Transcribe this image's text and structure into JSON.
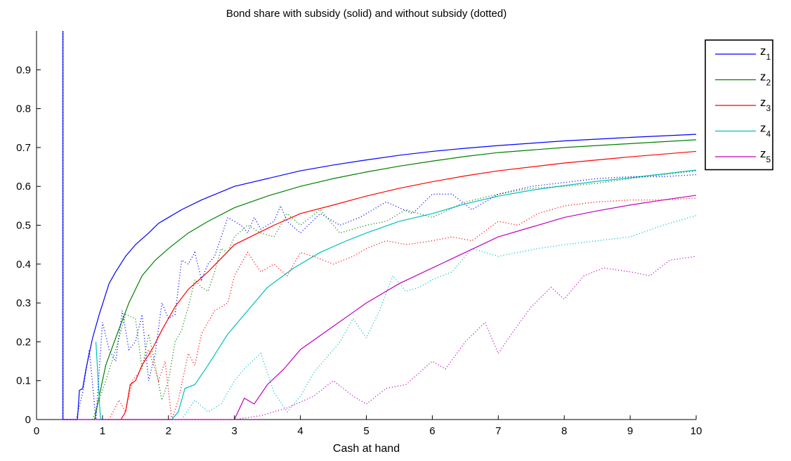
{
  "chart_data": {
    "type": "line",
    "title": "Bond share with subsidy (solid) and without subsidy (dotted)",
    "xlabel": "Cash at hand",
    "ylabel": "",
    "xlim": [
      0,
      10
    ],
    "ylim": [
      0,
      1
    ],
    "xticks": [
      "0",
      "1",
      "2",
      "3",
      "4",
      "5",
      "6",
      "7",
      "8",
      "9",
      "10"
    ],
    "yticks": [
      "0",
      "0.1",
      "0.2",
      "0.3",
      "0.4",
      "0.5",
      "0.6",
      "0.7",
      "0.8",
      "0.9"
    ],
    "grid": false,
    "legend_position": "top-right",
    "series": [
      {
        "name": "z",
        "subscript": "1",
        "color": "#0000ff",
        "style": "solid",
        "points": [
          [
            0.4,
            0
          ],
          [
            0.4,
            1.0
          ],
          [
            0.4,
            0
          ],
          [
            0.62,
            0
          ],
          [
            0.65,
            0.075
          ],
          [
            0.7,
            0.08
          ],
          [
            0.75,
            0.13
          ],
          [
            0.85,
            0.21
          ],
          [
            0.95,
            0.27
          ],
          [
            1.1,
            0.35
          ],
          [
            1.2,
            0.38
          ],
          [
            1.35,
            0.42
          ],
          [
            1.5,
            0.45
          ],
          [
            1.7,
            0.48
          ],
          [
            1.85,
            0.505
          ],
          [
            2.0,
            0.52
          ],
          [
            2.2,
            0.54
          ],
          [
            2.5,
            0.565
          ],
          [
            3.0,
            0.6
          ],
          [
            3.5,
            0.62
          ],
          [
            4.0,
            0.64
          ],
          [
            4.5,
            0.655
          ],
          [
            5.0,
            0.668
          ],
          [
            5.5,
            0.68
          ],
          [
            6.0,
            0.69
          ],
          [
            6.5,
            0.698
          ],
          [
            7.0,
            0.705
          ],
          [
            8.0,
            0.717
          ],
          [
            9.0,
            0.726
          ],
          [
            10.0,
            0.734
          ]
        ]
      },
      {
        "name": "z",
        "subscript": "2",
        "color": "#008000",
        "style": "solid",
        "points": [
          [
            0.88,
            0
          ],
          [
            0.95,
            0.06
          ],
          [
            1.05,
            0.14
          ],
          [
            1.2,
            0.21
          ],
          [
            1.4,
            0.3
          ],
          [
            1.6,
            0.37
          ],
          [
            1.8,
            0.41
          ],
          [
            2.0,
            0.44
          ],
          [
            2.3,
            0.48
          ],
          [
            2.6,
            0.51
          ],
          [
            3.0,
            0.545
          ],
          [
            3.5,
            0.575
          ],
          [
            4.0,
            0.6
          ],
          [
            4.5,
            0.62
          ],
          [
            5.0,
            0.637
          ],
          [
            5.5,
            0.652
          ],
          [
            6.0,
            0.665
          ],
          [
            6.5,
            0.677
          ],
          [
            7.0,
            0.687
          ],
          [
            8.0,
            0.7
          ],
          [
            9.0,
            0.71
          ],
          [
            10.0,
            0.72
          ]
        ]
      },
      {
        "name": "z",
        "subscript": "3",
        "color": "#ff0000",
        "style": "solid",
        "points": [
          [
            1.28,
            0
          ],
          [
            1.35,
            0.02
          ],
          [
            1.42,
            0.09
          ],
          [
            1.5,
            0.1
          ],
          [
            1.6,
            0.14
          ],
          [
            1.75,
            0.18
          ],
          [
            1.9,
            0.23
          ],
          [
            2.1,
            0.29
          ],
          [
            2.3,
            0.335
          ],
          [
            2.6,
            0.38
          ],
          [
            3.0,
            0.45
          ],
          [
            3.3,
            0.475
          ],
          [
            3.6,
            0.5
          ],
          [
            4.0,
            0.53
          ],
          [
            4.5,
            0.552
          ],
          [
            5.0,
            0.575
          ],
          [
            5.5,
            0.595
          ],
          [
            6.0,
            0.612
          ],
          [
            6.5,
            0.627
          ],
          [
            7.0,
            0.64
          ],
          [
            8.0,
            0.66
          ],
          [
            9.0,
            0.676
          ],
          [
            10.0,
            0.69
          ]
        ]
      },
      {
        "name": "z",
        "subscript": "4",
        "color": "#00bfbf",
        "style": "solid",
        "points": [
          [
            0.9,
            0.2
          ],
          [
            0.97,
            0
          ],
          [
            2.05,
            0
          ],
          [
            2.15,
            0.02
          ],
          [
            2.25,
            0.08
          ],
          [
            2.4,
            0.09
          ],
          [
            2.6,
            0.14
          ],
          [
            2.9,
            0.22
          ],
          [
            3.2,
            0.28
          ],
          [
            3.5,
            0.34
          ],
          [
            3.9,
            0.39
          ],
          [
            4.3,
            0.43
          ],
          [
            4.7,
            0.46
          ],
          [
            5.0,
            0.48
          ],
          [
            5.5,
            0.51
          ],
          [
            6.0,
            0.53
          ],
          [
            6.5,
            0.555
          ],
          [
            7.0,
            0.575
          ],
          [
            7.5,
            0.59
          ],
          [
            8.0,
            0.602
          ],
          [
            8.5,
            0.613
          ],
          [
            9.0,
            0.622
          ],
          [
            9.5,
            0.632
          ],
          [
            10.0,
            0.642
          ]
        ]
      },
      {
        "name": "z",
        "subscript": "5",
        "color": "#bf00bf",
        "style": "solid",
        "points": [
          [
            0.4,
            0
          ],
          [
            3.0,
            0
          ],
          [
            3.15,
            0.055
          ],
          [
            3.3,
            0.04
          ],
          [
            3.5,
            0.09
          ],
          [
            3.75,
            0.13
          ],
          [
            4.0,
            0.18
          ],
          [
            4.5,
            0.24
          ],
          [
            5.0,
            0.3
          ],
          [
            5.5,
            0.35
          ],
          [
            6.0,
            0.39
          ],
          [
            6.5,
            0.43
          ],
          [
            7.0,
            0.47
          ],
          [
            7.5,
            0.495
          ],
          [
            8.0,
            0.52
          ],
          [
            8.5,
            0.537
          ],
          [
            9.0,
            0.552
          ],
          [
            9.5,
            0.565
          ],
          [
            10.0,
            0.577
          ]
        ]
      },
      {
        "name": "",
        "color": "#0000ff",
        "style": "dotted",
        "points": [
          [
            0.4,
            0
          ],
          [
            0.4,
            1.0
          ],
          [
            0.4,
            0
          ],
          [
            0.6,
            0
          ],
          [
            0.7,
            0.07
          ],
          [
            0.8,
            0.18
          ],
          [
            0.9,
            0.0
          ],
          [
            1.0,
            0.25
          ],
          [
            1.1,
            0.18
          ],
          [
            1.2,
            0.15
          ],
          [
            1.3,
            0.28
          ],
          [
            1.4,
            0.18
          ],
          [
            1.5,
            0.2
          ],
          [
            1.6,
            0.27
          ],
          [
            1.7,
            0.1
          ],
          [
            1.8,
            0.17
          ],
          [
            1.9,
            0.3
          ],
          [
            2.0,
            0.26
          ],
          [
            2.1,
            0.27
          ],
          [
            2.2,
            0.41
          ],
          [
            2.3,
            0.4
          ],
          [
            2.4,
            0.43
          ],
          [
            2.5,
            0.36
          ],
          [
            2.6,
            0.4
          ],
          [
            2.7,
            0.42
          ],
          [
            2.8,
            0.47
          ],
          [
            2.9,
            0.52
          ],
          [
            3.0,
            0.51
          ],
          [
            3.1,
            0.5
          ],
          [
            3.2,
            0.48
          ],
          [
            3.3,
            0.52
          ],
          [
            3.4,
            0.49
          ],
          [
            3.5,
            0.5
          ],
          [
            3.6,
            0.51
          ],
          [
            3.7,
            0.55
          ],
          [
            3.8,
            0.51
          ],
          [
            4.0,
            0.48
          ],
          [
            4.3,
            0.53
          ],
          [
            4.6,
            0.5
          ],
          [
            4.9,
            0.52
          ],
          [
            5.3,
            0.56
          ],
          [
            5.7,
            0.53
          ],
          [
            6.0,
            0.58
          ],
          [
            6.3,
            0.58
          ],
          [
            6.6,
            0.54
          ],
          [
            7.0,
            0.58
          ],
          [
            7.5,
            0.6
          ],
          [
            8.0,
            0.61
          ],
          [
            8.5,
            0.62
          ],
          [
            9.0,
            0.625
          ],
          [
            9.5,
            0.625
          ],
          [
            10.0,
            0.63
          ]
        ]
      },
      {
        "name": "",
        "color": "#008000",
        "style": "dotted",
        "points": [
          [
            0.85,
            0
          ],
          [
            0.95,
            0.05
          ],
          [
            1.05,
            0.1
          ],
          [
            1.2,
            0.18
          ],
          [
            1.35,
            0.27
          ],
          [
            1.5,
            0.26
          ],
          [
            1.6,
            0.13
          ],
          [
            1.7,
            0.22
          ],
          [
            1.8,
            0.14
          ],
          [
            1.9,
            0.05
          ],
          [
            2.0,
            0.1
          ],
          [
            2.1,
            0.2
          ],
          [
            2.2,
            0.23
          ],
          [
            2.3,
            0.29
          ],
          [
            2.4,
            0.36
          ],
          [
            2.5,
            0.34
          ],
          [
            2.6,
            0.33
          ],
          [
            2.7,
            0.38
          ],
          [
            2.8,
            0.44
          ],
          [
            2.9,
            0.43
          ],
          [
            3.0,
            0.47
          ],
          [
            3.2,
            0.5
          ],
          [
            3.4,
            0.48
          ],
          [
            3.6,
            0.47
          ],
          [
            3.8,
            0.53
          ],
          [
            4.0,
            0.5
          ],
          [
            4.3,
            0.54
          ],
          [
            4.6,
            0.48
          ],
          [
            5.0,
            0.5
          ],
          [
            5.3,
            0.51
          ],
          [
            5.6,
            0.54
          ],
          [
            6.0,
            0.52
          ],
          [
            6.5,
            0.56
          ],
          [
            7.0,
            0.58
          ],
          [
            7.5,
            0.595
          ],
          [
            8.0,
            0.6
          ],
          [
            8.5,
            0.608
          ],
          [
            9.0,
            0.62
          ],
          [
            9.5,
            0.63
          ],
          [
            10.0,
            0.64
          ]
        ]
      },
      {
        "name": "",
        "color": "#ff0000",
        "style": "dotted",
        "points": [
          [
            1.1,
            0
          ],
          [
            1.25,
            0.05
          ],
          [
            1.35,
            0.02
          ],
          [
            1.45,
            0.1
          ],
          [
            1.55,
            0.12
          ],
          [
            1.7,
            0.18
          ],
          [
            1.85,
            0.1
          ],
          [
            1.95,
            0.15
          ],
          [
            2.05,
            0.0
          ],
          [
            2.15,
            0.05
          ],
          [
            2.3,
            0.17
          ],
          [
            2.4,
            0.14
          ],
          [
            2.5,
            0.22
          ],
          [
            2.7,
            0.28
          ],
          [
            2.9,
            0.3
          ],
          [
            3.0,
            0.37
          ],
          [
            3.2,
            0.43
          ],
          [
            3.4,
            0.38
          ],
          [
            3.6,
            0.4
          ],
          [
            3.8,
            0.37
          ],
          [
            4.0,
            0.43
          ],
          [
            4.2,
            0.42
          ],
          [
            4.5,
            0.4
          ],
          [
            4.8,
            0.42
          ],
          [
            5.0,
            0.44
          ],
          [
            5.3,
            0.46
          ],
          [
            5.6,
            0.45
          ],
          [
            6.0,
            0.46
          ],
          [
            6.3,
            0.47
          ],
          [
            6.6,
            0.46
          ],
          [
            7.0,
            0.51
          ],
          [
            7.3,
            0.5
          ],
          [
            7.6,
            0.53
          ],
          [
            8.0,
            0.55
          ],
          [
            8.5,
            0.56
          ],
          [
            9.0,
            0.565
          ],
          [
            9.5,
            0.565
          ],
          [
            10.0,
            0.57
          ]
        ]
      },
      {
        "name": "",
        "color": "#00bfbf",
        "style": "dotted",
        "points": [
          [
            2.2,
            0
          ],
          [
            2.4,
            0.05
          ],
          [
            2.6,
            0.02
          ],
          [
            2.8,
            0.04
          ],
          [
            3.0,
            0.1
          ],
          [
            3.2,
            0.14
          ],
          [
            3.4,
            0.17
          ],
          [
            3.6,
            0.07
          ],
          [
            3.8,
            0.02
          ],
          [
            4.0,
            0.06
          ],
          [
            4.2,
            0.12
          ],
          [
            4.4,
            0.16
          ],
          [
            4.6,
            0.2
          ],
          [
            4.8,
            0.26
          ],
          [
            5.0,
            0.21
          ],
          [
            5.2,
            0.28
          ],
          [
            5.4,
            0.37
          ],
          [
            5.6,
            0.33
          ],
          [
            5.8,
            0.34
          ],
          [
            6.0,
            0.36
          ],
          [
            6.3,
            0.38
          ],
          [
            6.6,
            0.44
          ],
          [
            7.0,
            0.42
          ],
          [
            7.3,
            0.43
          ],
          [
            7.6,
            0.44
          ],
          [
            8.0,
            0.45
          ],
          [
            8.5,
            0.46
          ],
          [
            9.0,
            0.47
          ],
          [
            9.5,
            0.5
          ],
          [
            10.0,
            0.525
          ]
        ]
      },
      {
        "name": "",
        "color": "#bf00bf",
        "style": "dotted",
        "points": [
          [
            0.4,
            0
          ],
          [
            3.0,
            0
          ],
          [
            3.4,
            0.01
          ],
          [
            3.8,
            0.03
          ],
          [
            4.2,
            0.06
          ],
          [
            4.5,
            0.1
          ],
          [
            4.8,
            0.06
          ],
          [
            5.0,
            0.04
          ],
          [
            5.3,
            0.08
          ],
          [
            5.6,
            0.09
          ],
          [
            6.0,
            0.15
          ],
          [
            6.2,
            0.13
          ],
          [
            6.5,
            0.2
          ],
          [
            6.8,
            0.25
          ],
          [
            7.0,
            0.17
          ],
          [
            7.2,
            0.22
          ],
          [
            7.5,
            0.29
          ],
          [
            7.8,
            0.34
          ],
          [
            8.0,
            0.31
          ],
          [
            8.3,
            0.37
          ],
          [
            8.6,
            0.39
          ],
          [
            9.0,
            0.38
          ],
          [
            9.3,
            0.37
          ],
          [
            9.6,
            0.41
          ],
          [
            10.0,
            0.42
          ]
        ]
      }
    ]
  }
}
